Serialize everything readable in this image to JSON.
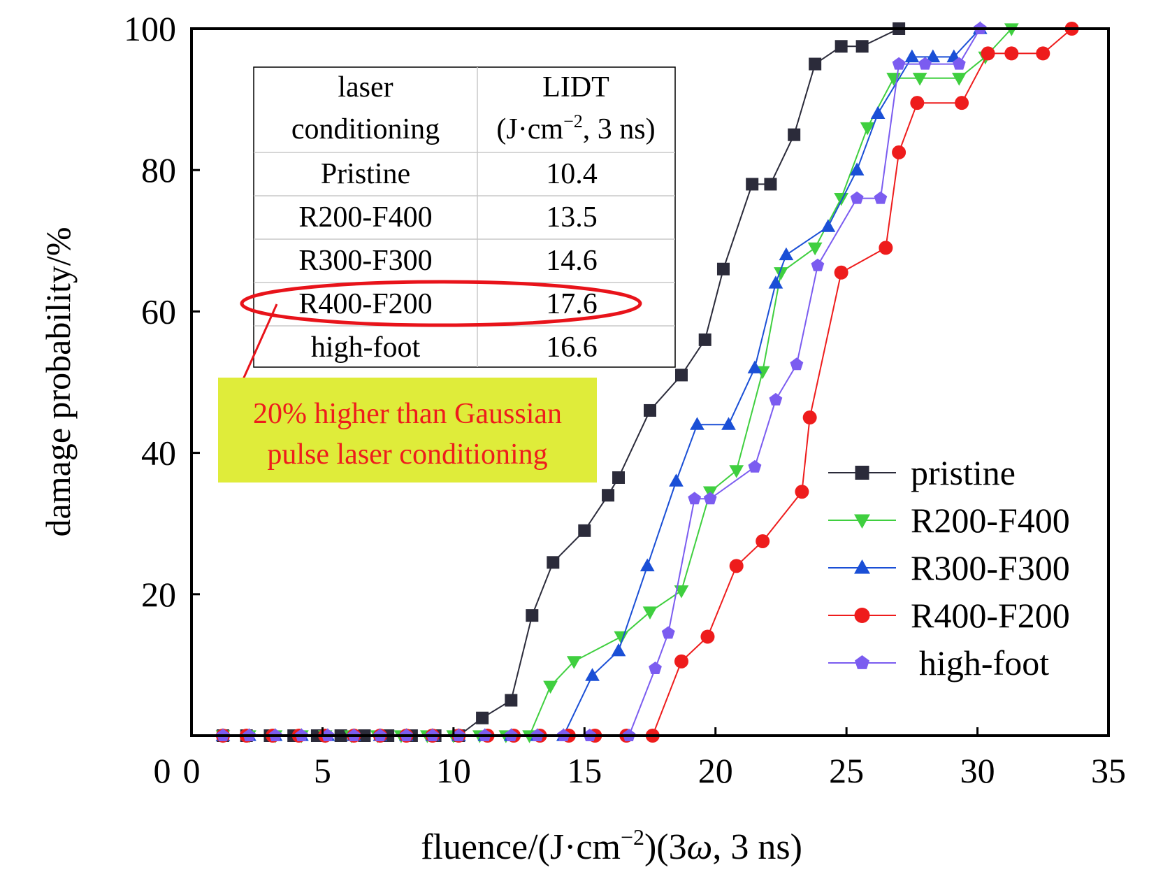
{
  "chart_data": {
    "type": "line",
    "xlabel_prefix": "fluence/(J·cm",
    "xlabel_sup": "−2",
    "xlabel_mid": ")(3",
    "xlabel_omega": "ω",
    "xlabel_suffix": ", 3 ns)",
    "ylabel": "damage probability/%",
    "xlim": [
      0,
      35
    ],
    "ylim": [
      0,
      100
    ],
    "xticks": [
      0,
      5,
      10,
      15,
      20,
      25,
      30,
      35
    ],
    "yticks": [
      0,
      20,
      40,
      60,
      80,
      100
    ],
    "legend_position": "bottom-right",
    "series": [
      {
        "name": "pristine",
        "color": "#2b2b3a",
        "marker": "square",
        "points": [
          [
            1.2,
            0
          ],
          [
            2.1,
            0
          ],
          [
            3.0,
            0
          ],
          [
            3.9,
            0
          ],
          [
            4.8,
            0
          ],
          [
            5.7,
            0
          ],
          [
            6.6,
            0
          ],
          [
            7.5,
            0
          ],
          [
            8.4,
            0
          ],
          [
            9.3,
            0
          ],
          [
            10.2,
            0
          ],
          [
            11.1,
            2.5
          ],
          [
            12.2,
            5
          ],
          [
            13.0,
            17
          ],
          [
            13.8,
            24.5
          ],
          [
            15.0,
            29
          ],
          [
            15.9,
            34
          ],
          [
            16.3,
            36.5
          ],
          [
            17.5,
            46
          ],
          [
            18.7,
            51
          ],
          [
            19.6,
            56
          ],
          [
            20.3,
            66
          ],
          [
            21.4,
            78
          ],
          [
            22.1,
            78
          ],
          [
            23.0,
            85
          ],
          [
            23.8,
            95
          ],
          [
            24.8,
            97.5
          ],
          [
            25.6,
            97.5
          ],
          [
            27.0,
            100
          ]
        ]
      },
      {
        "name": "R200-F400",
        "color": "#3fcf3f",
        "marker": "triangle-down",
        "points": [
          [
            1.2,
            0
          ],
          [
            2.2,
            0
          ],
          [
            3.2,
            0
          ],
          [
            4.2,
            0
          ],
          [
            5.1,
            0
          ],
          [
            6.1,
            0
          ],
          [
            7.1,
            0
          ],
          [
            8.0,
            0
          ],
          [
            9.0,
            0
          ],
          [
            10.0,
            0
          ],
          [
            11.0,
            0
          ],
          [
            12.0,
            0
          ],
          [
            12.9,
            0
          ],
          [
            13.7,
            7
          ],
          [
            14.6,
            10.5
          ],
          [
            16.4,
            14
          ],
          [
            17.5,
            17.5
          ],
          [
            18.7,
            20.5
          ],
          [
            19.8,
            34.5
          ],
          [
            20.8,
            37.5
          ],
          [
            21.8,
            51.5
          ],
          [
            22.5,
            65.5
          ],
          [
            23.8,
            69
          ],
          [
            24.8,
            76
          ],
          [
            25.8,
            86
          ],
          [
            26.8,
            93
          ],
          [
            27.8,
            93
          ],
          [
            29.3,
            93
          ],
          [
            30.3,
            96
          ],
          [
            31.3,
            100
          ]
        ]
      },
      {
        "name": "R300-F300",
        "color": "#1a4fd6",
        "marker": "triangle-up",
        "points": [
          [
            1.2,
            0
          ],
          [
            2.2,
            0
          ],
          [
            3.2,
            0
          ],
          [
            4.2,
            0
          ],
          [
            5.2,
            0
          ],
          [
            6.2,
            0
          ],
          [
            7.2,
            0
          ],
          [
            8.2,
            0
          ],
          [
            9.2,
            0
          ],
          [
            10.2,
            0
          ],
          [
            11.2,
            0
          ],
          [
            12.2,
            0
          ],
          [
            13.2,
            0
          ],
          [
            14.2,
            0
          ],
          [
            15.3,
            8.5
          ],
          [
            16.3,
            12
          ],
          [
            17.4,
            24
          ],
          [
            18.5,
            36
          ],
          [
            19.3,
            44
          ],
          [
            20.5,
            44
          ],
          [
            21.5,
            52
          ],
          [
            22.3,
            64
          ],
          [
            22.7,
            68
          ],
          [
            24.3,
            72
          ],
          [
            25.4,
            80
          ],
          [
            26.2,
            88
          ],
          [
            27.5,
            96
          ],
          [
            28.3,
            96
          ],
          [
            29.1,
            96
          ],
          [
            30.1,
            100
          ]
        ]
      },
      {
        "name": "R400-F200",
        "color": "#ee1c1c",
        "marker": "circle",
        "points": [
          [
            1.2,
            0
          ],
          [
            2.1,
            0
          ],
          [
            3.1,
            0
          ],
          [
            4.1,
            0
          ],
          [
            5.1,
            0
          ],
          [
            6.2,
            0
          ],
          [
            7.2,
            0
          ],
          [
            8.2,
            0
          ],
          [
            9.2,
            0
          ],
          [
            10.2,
            0
          ],
          [
            11.3,
            0
          ],
          [
            12.3,
            0
          ],
          [
            13.3,
            0
          ],
          [
            14.4,
            0
          ],
          [
            15.4,
            0
          ],
          [
            16.6,
            0
          ],
          [
            17.6,
            0
          ],
          [
            18.7,
            10.5
          ],
          [
            19.7,
            14
          ],
          [
            20.8,
            24
          ],
          [
            21.8,
            27.5
          ],
          [
            23.3,
            34.5
          ],
          [
            23.6,
            45
          ],
          [
            24.8,
            65.5
          ],
          [
            26.5,
            69
          ],
          [
            27.0,
            82.5
          ],
          [
            27.7,
            89.5
          ],
          [
            29.4,
            89.5
          ],
          [
            30.4,
            96.5
          ],
          [
            31.3,
            96.5
          ],
          [
            32.5,
            96.5
          ],
          [
            33.6,
            100
          ]
        ]
      },
      {
        "name": "high-foot",
        "color": "#7b5cf0",
        "marker": "pentagon",
        "points": [
          [
            1.2,
            0
          ],
          [
            2.2,
            0
          ],
          [
            3.2,
            0
          ],
          [
            4.2,
            0
          ],
          [
            5.2,
            0
          ],
          [
            6.2,
            0
          ],
          [
            7.2,
            0
          ],
          [
            8.2,
            0
          ],
          [
            9.2,
            0
          ],
          [
            10.2,
            0
          ],
          [
            11.2,
            0
          ],
          [
            12.2,
            0
          ],
          [
            13.2,
            0
          ],
          [
            14.2,
            0
          ],
          [
            15.2,
            0
          ],
          [
            16.7,
            0
          ],
          [
            17.7,
            9.5
          ],
          [
            18.2,
            14.5
          ],
          [
            19.2,
            33.5
          ],
          [
            19.8,
            33.5
          ],
          [
            21.5,
            38
          ],
          [
            22.3,
            47.5
          ],
          [
            23.1,
            52.5
          ],
          [
            23.9,
            66.5
          ],
          [
            25.4,
            76
          ],
          [
            26.3,
            76
          ],
          [
            27.0,
            95
          ],
          [
            28.0,
            95
          ],
          [
            29.3,
            95
          ],
          [
            30.1,
            100
          ]
        ]
      }
    ]
  },
  "inset_table": {
    "header_col1": "laser",
    "header_col1_line2": "conditioning",
    "header_col2": "LIDT",
    "header_col2_line2_prefix": "(J·cm",
    "header_col2_line2_sup": "−2",
    "header_col2_line2_suffix": ", 3 ns)",
    "rows": [
      {
        "label": "Pristine",
        "value": "10.4"
      },
      {
        "label": "R200-F400",
        "value": "13.5"
      },
      {
        "label": "R300-F300",
        "value": "14.6"
      },
      {
        "label": "R400-F200",
        "value": "17.6"
      },
      {
        "label": "high-foot",
        "value": "16.6"
      }
    ],
    "highlight_row_index": 3,
    "highlight_color": "#e8131a"
  },
  "annotation": {
    "line1": "20% higher than Gaussian",
    "line2": "pulse laser conditioning",
    "text_color": "#ee1c1c",
    "background": "#dfec3a"
  }
}
